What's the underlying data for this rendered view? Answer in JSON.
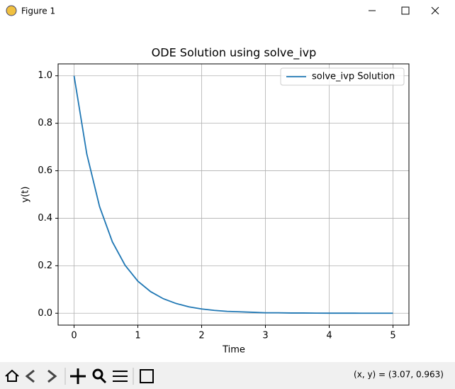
{
  "window": {
    "title": "Figure 1",
    "status": "(x, y) = (3.07, 0.963)"
  },
  "chart_data": {
    "type": "line",
    "title": "ODE Solution using solve_ivp",
    "x_label": "Time",
    "y_label": "y(t)",
    "x": [
      0,
      0.2,
      0.4,
      0.6,
      0.8,
      1.0,
      1.2,
      1.4,
      1.6,
      1.8,
      2.0,
      2.2,
      2.4,
      2.6,
      2.8,
      3.0,
      3.2,
      3.4,
      3.6,
      3.8,
      4.0,
      4.2,
      4.4,
      4.6,
      4.8,
      5.0
    ],
    "series": [
      {
        "name": "solve_ivp Solution",
        "color": "#1f77b4",
        "values": [
          1,
          0.67,
          0.449,
          0.301,
          0.202,
          0.135,
          0.091,
          0.061,
          0.041,
          0.027,
          0.018,
          0.012,
          0.008,
          0.006,
          0.004,
          0.002,
          0.002,
          0.001,
          0.001,
          0.0005,
          0.0003,
          0.0002,
          0.0002,
          0.0001,
          0.0001,
          0
        ]
      }
    ],
    "xlim": [
      -0.25,
      5.25
    ],
    "ylim": [
      -0.05,
      1.05
    ],
    "xticks": [
      0,
      1,
      2,
      3,
      4,
      5
    ],
    "yticks": [
      {
        "value": 0,
        "label": "0.0"
      },
      0.2,
      0.4,
      0.6,
      0.8,
      {
        "value": 1,
        "label": "1.0"
      }
    ],
    "grid": true,
    "legend": "upper right"
  }
}
